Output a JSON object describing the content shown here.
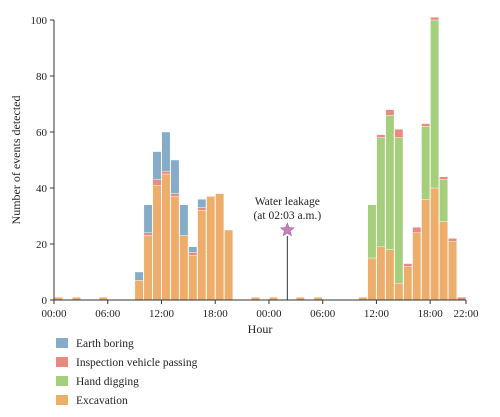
{
  "chart_data": {
    "type": "bar",
    "stacked": true,
    "xlabel": "Hour",
    "ylabel": "Number of events detected",
    "ylim": [
      0,
      100
    ],
    "yticks": [
      0,
      20,
      40,
      60,
      80,
      100
    ],
    "xlim_hours": [
      0,
      46
    ],
    "xtick_positions_hours": [
      0,
      6,
      12,
      18,
      24,
      30,
      36,
      42,
      46
    ],
    "xtick_labels": [
      "00:00",
      "06:00",
      "12:00",
      "18:00",
      "00:00",
      "06:00",
      "12:00",
      "18:00",
      "22:00"
    ],
    "grid": false,
    "legend_position": "below",
    "bin_hours": 1,
    "x_hours": [
      0,
      1,
      2,
      3,
      4,
      5,
      6,
      7,
      8,
      9,
      10,
      11,
      12,
      13,
      14,
      15,
      16,
      17,
      18,
      19,
      20,
      21,
      22,
      23,
      24,
      25,
      26,
      27,
      28,
      29,
      30,
      31,
      32,
      33,
      34,
      35,
      36,
      37,
      38,
      39,
      40,
      41,
      42,
      43,
      44,
      45
    ],
    "series": [
      {
        "name": "Excavation",
        "color": "#ecae6a",
        "values": [
          1,
          0,
          1,
          0,
          0,
          1,
          0,
          0,
          0,
          7,
          23,
          41,
          45,
          37,
          23,
          16,
          32,
          37,
          38,
          25,
          0,
          0,
          1,
          0,
          1,
          0,
          0,
          1,
          0,
          1,
          0,
          0,
          0,
          0,
          1,
          15,
          19,
          18,
          6,
          12,
          24,
          36,
          40,
          28,
          21,
          0
        ]
      },
      {
        "name": "Hand digging",
        "color": "#a6cf7d",
        "values": [
          0,
          0,
          0,
          0,
          0,
          0,
          0,
          0,
          0,
          0,
          0,
          0,
          0,
          0,
          0,
          0,
          0,
          0,
          0,
          0,
          0,
          0,
          0,
          0,
          0,
          0,
          0,
          0,
          0,
          0,
          0,
          0,
          0,
          0,
          0,
          19,
          39,
          48,
          52,
          0,
          0,
          26,
          60,
          15,
          0,
          0
        ]
      },
      {
        "name": "Inspection vehicle passing",
        "color": "#e88a80",
        "values": [
          0,
          0,
          0,
          0,
          0,
          0,
          0,
          0,
          0,
          0,
          1,
          2,
          1,
          1,
          0,
          1,
          1,
          0,
          0,
          0,
          0,
          0,
          0,
          0,
          0,
          0,
          0,
          0,
          0,
          0,
          0,
          0,
          0,
          0,
          0,
          0,
          1,
          2,
          3,
          1,
          2,
          1,
          1,
          1,
          1,
          1
        ]
      },
      {
        "name": "Earth boring",
        "color": "#86acc8",
        "values": [
          0,
          0,
          0,
          0,
          0,
          0,
          0,
          0,
          0,
          3,
          10,
          10,
          14,
          12,
          11,
          2,
          3,
          0,
          0,
          0,
          0,
          0,
          0,
          0,
          0,
          0,
          0,
          0,
          0,
          0,
          0,
          0,
          0,
          0,
          0,
          0,
          0,
          0,
          0,
          0,
          0,
          0,
          0,
          0,
          0,
          0
        ]
      }
    ],
    "annotations": [
      {
        "text": "Water leakage",
        "subtext": "(at 02:03 a.m.)",
        "x_hour": 26.05,
        "y": 25,
        "marker": "star",
        "color": "#c97fc0"
      }
    ],
    "legend": [
      "Earth boring",
      "Inspection vehicle passing",
      "Hand digging",
      "Excavation"
    ]
  }
}
